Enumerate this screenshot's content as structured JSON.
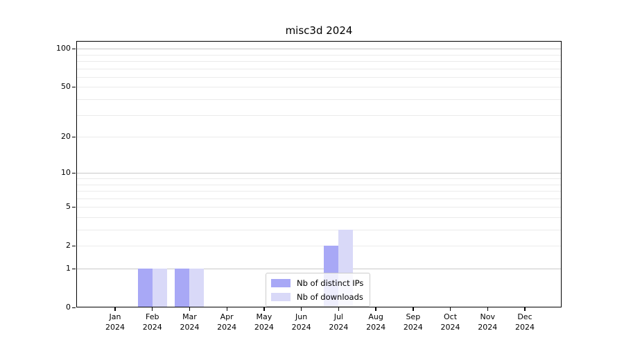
{
  "title": "misc3d 2024",
  "chart_data": {
    "type": "bar",
    "title": "misc3d 2024",
    "months": [
      "Jan",
      "Feb",
      "Mar",
      "Apr",
      "May",
      "Jun",
      "Jul",
      "Aug",
      "Sep",
      "Oct",
      "Nov",
      "Dec"
    ],
    "year_label": "2024",
    "categories": [
      "Jan 2024",
      "Feb 2024",
      "Mar 2024",
      "Apr 2024",
      "May 2024",
      "Jun 2024",
      "Jul 2024",
      "Aug 2024",
      "Sep 2024",
      "Oct 2024",
      "Nov 2024",
      "Dec 2024"
    ],
    "series": [
      {
        "name": "Nb of distinct IPs",
        "color": "#a8a8f6",
        "values": [
          0,
          1,
          1,
          0,
          0,
          0,
          2,
          0,
          0,
          0,
          0,
          0
        ]
      },
      {
        "name": "Nb of downloads",
        "color": "#d9d9f8",
        "values": [
          0,
          1,
          1,
          0,
          0,
          0,
          3,
          0,
          0,
          0,
          0,
          0
        ]
      }
    ],
    "yscale": "log10(1+x)",
    "yticks": [
      0,
      1,
      2,
      5,
      10,
      20,
      50,
      100
    ],
    "ylim": [
      0,
      115
    ],
    "major_gridlines": [
      1,
      10,
      100
    ],
    "minor_gridlines": [
      2,
      3,
      4,
      5,
      6,
      7,
      8,
      9,
      20,
      30,
      40,
      50,
      60,
      70,
      80,
      90
    ],
    "grid": true,
    "legend_position": "lower center inside plot",
    "colors": {
      "bar_distinct_ips": "#a8a8f6",
      "bar_downloads": "#d9d9f8",
      "major_grid": "#c8c8c8",
      "minor_grid": "#ebebeb",
      "axis": "#000000",
      "text": "#000000",
      "legend_border": "#cccccc"
    }
  }
}
